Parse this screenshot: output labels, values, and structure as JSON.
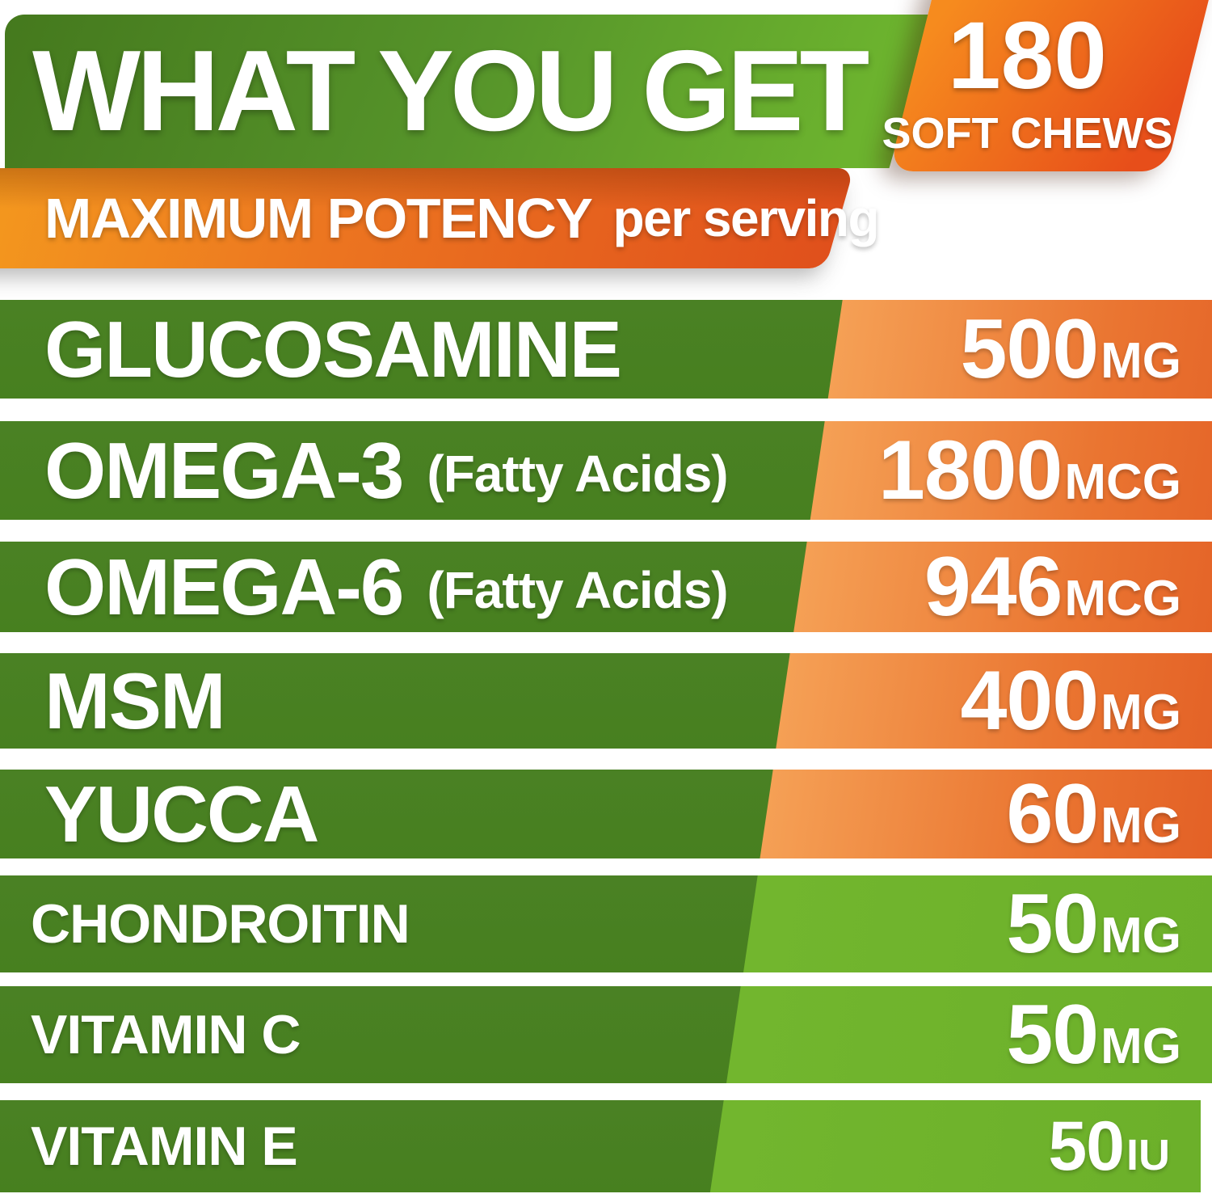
{
  "header": {
    "title": "WHAT YOU GET",
    "badge": {
      "count": "180",
      "label": "SOFT CHEWS"
    }
  },
  "banner": {
    "title": "MAXIMUM POTENCY",
    "subtitle": "per serving"
  },
  "ingredients": [
    {
      "name": "GLUCOSAMINE",
      "note": "",
      "amount": "500",
      "unit": "MG",
      "accent": "orange"
    },
    {
      "name": "OMEGA-3",
      "note": "(Fatty Acids)",
      "amount": "1800",
      "unit": "MCG",
      "accent": "orange"
    },
    {
      "name": "OMEGA-6",
      "note": "(Fatty Acids)",
      "amount": "946",
      "unit": "MCG",
      "accent": "orange"
    },
    {
      "name": "MSM",
      "note": "",
      "amount": "400",
      "unit": "MG",
      "accent": "orange"
    },
    {
      "name": "YUCCA",
      "note": "",
      "amount": "60",
      "unit": "MG",
      "accent": "orange"
    },
    {
      "name": "CHONDROITIN",
      "note": "",
      "amount": "50",
      "unit": "MG",
      "accent": "green"
    },
    {
      "name": "VITAMIN C",
      "note": "",
      "amount": "50",
      "unit": "MG",
      "accent": "green"
    },
    {
      "name": "VITAMIN E",
      "note": "",
      "amount": "50",
      "unit": "IU",
      "accent": "green"
    }
  ],
  "colors": {
    "row-green": "#4a8124",
    "light-green": "#72b62e",
    "header-green-dark": "#44781d",
    "header-green-light": "#6cb32e",
    "panel-orange-light": "#f5a055",
    "panel-orange-dark": "#dd4e1c",
    "banner-amber": "#f59e1e",
    "banner-orange": "#e0501c",
    "badge-orange-light": "#f68b1e",
    "badge-orange-dark": "#e74e1a"
  }
}
